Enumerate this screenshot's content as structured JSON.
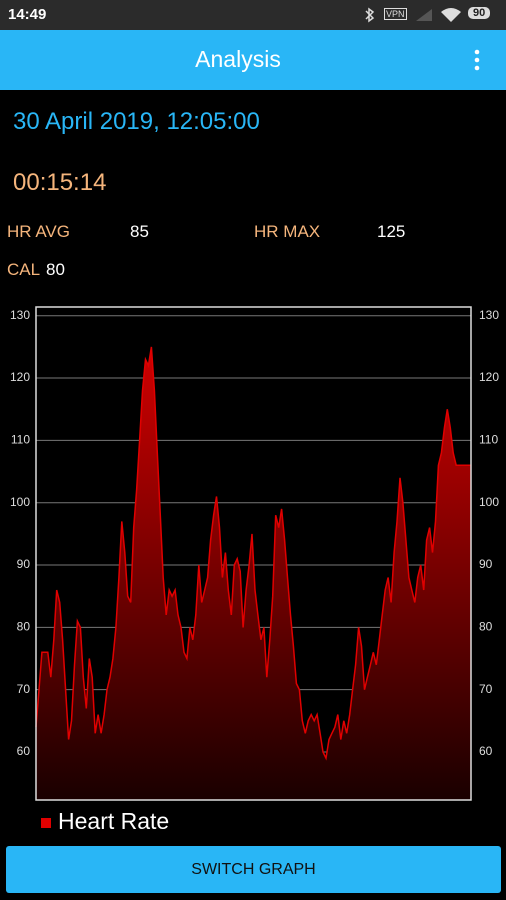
{
  "status_bar": {
    "time": "14:49",
    "vpn": "VPN",
    "battery": 90
  },
  "app_bar": {
    "title": "Analysis"
  },
  "session": {
    "datetime": "30 April 2019, 12:05:00",
    "duration": "00:15:14",
    "stats": [
      {
        "label": "HR AVG",
        "value": 85
      },
      {
        "label": "HR MAX",
        "value": 125
      },
      {
        "label": "CAL",
        "value": 80
      }
    ]
  },
  "chart_data": {
    "type": "area",
    "series": [
      {
        "name": "Heart Rate",
        "color": "#e00000",
        "values": [
          64,
          70,
          76,
          76,
          76,
          72,
          78,
          86,
          84,
          78,
          70,
          62,
          65,
          74,
          81,
          80,
          72,
          67,
          75,
          72,
          63,
          66,
          63,
          66,
          70,
          72,
          75,
          80,
          88,
          97,
          92,
          85,
          84,
          96,
          102,
          110,
          118,
          123,
          122,
          125,
          118,
          108,
          98,
          88,
          82,
          86,
          85,
          86,
          82,
          80,
          76,
          75,
          80,
          78,
          82,
          90,
          84,
          86,
          88,
          94,
          98,
          101,
          96,
          88,
          92,
          86,
          82,
          90,
          91,
          89,
          80,
          86,
          90,
          95,
          86,
          82,
          78,
          80,
          72,
          78,
          85,
          98,
          96,
          99,
          94,
          88,
          82,
          77,
          71,
          70,
          65,
          63,
          65,
          66,
          65,
          66,
          63,
          60,
          59,
          62,
          63,
          64,
          66,
          62,
          65,
          63,
          66,
          70,
          74,
          80,
          77,
          70,
          72,
          74,
          76,
          74,
          78,
          82,
          86,
          88,
          84,
          92,
          97,
          104,
          100,
          94,
          88,
          86,
          84,
          88,
          90,
          86,
          94,
          96,
          92,
          97,
          106,
          108,
          112,
          115,
          112,
          108,
          106,
          106,
          106,
          106,
          106,
          106
        ]
      }
    ],
    "ylim": [
      52.3,
      131.4
    ],
    "yticks": [
      60,
      70,
      80,
      90,
      100,
      110,
      120,
      130
    ],
    "grid": true,
    "legend": "bottom-left"
  },
  "button": {
    "label": "SWITCH GRAPH"
  }
}
